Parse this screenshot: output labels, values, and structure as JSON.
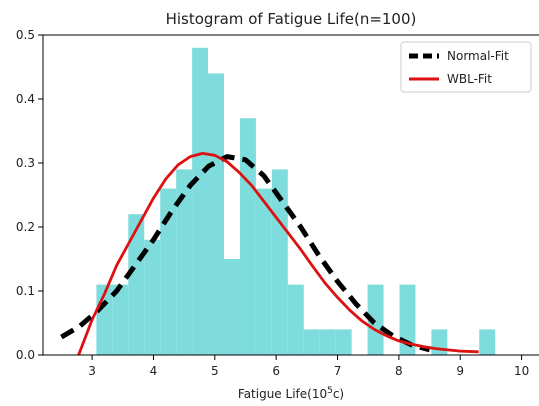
{
  "chart_data": {
    "type": "histogram",
    "title": "Histogram of Fatigue Life(n=100)",
    "xlabel_main": "Fatigue Life(10",
    "xlabel_sup": "5",
    "xlabel_end": "c)",
    "ylabel": "",
    "xlim": [
      2.2,
      10.3
    ],
    "ylim": [
      0,
      0.5
    ],
    "xticks": [
      "3",
      "4",
      "5",
      "6",
      "7",
      "8",
      "9",
      "10"
    ],
    "yticks": [
      "0.0",
      "0.1",
      "0.2",
      "0.3",
      "0.4",
      "0.5"
    ],
    "xtick_values": [
      3,
      4,
      5,
      6,
      7,
      8,
      9,
      10
    ],
    "ytick_values": [
      0,
      0.1,
      0.2,
      0.3,
      0.4,
      0.5
    ],
    "bar_color": "#7fdcdc",
    "bin_edges": [
      3.07,
      3.33,
      3.59,
      3.85,
      4.11,
      4.37,
      4.63,
      4.89,
      5.15,
      5.41,
      5.67,
      5.93,
      6.19,
      6.45,
      6.71,
      6.97,
      7.23,
      7.49,
      7.75,
      8.01,
      8.27,
      8.53,
      8.79,
      9.05,
      9.31,
      9.57,
      9.83
    ],
    "densities": [
      0.11,
      0.11,
      0.22,
      0.18,
      0.26,
      0.29,
      0.48,
      0.44,
      0.15,
      0.37,
      0.26,
      0.29,
      0.11,
      0.04,
      0.04,
      0.04,
      0,
      0.11,
      0,
      0.11,
      0,
      0.04,
      0,
      0,
      0.04,
      0
    ],
    "series": [
      {
        "name": "Normal-Fit",
        "color": "#000000",
        "style": "dashed",
        "x": [
          2.5,
          2.8,
          3.1,
          3.4,
          3.7,
          4.0,
          4.3,
          4.6,
          4.9,
          5.2,
          5.5,
          5.8,
          6.1,
          6.4,
          6.7,
          7.0,
          7.3,
          7.6,
          7.9,
          8.2,
          8.5
        ],
        "y": [
          0.028,
          0.045,
          0.07,
          0.1,
          0.14,
          0.18,
          0.225,
          0.265,
          0.295,
          0.31,
          0.305,
          0.28,
          0.24,
          0.2,
          0.155,
          0.115,
          0.08,
          0.05,
          0.03,
          0.016,
          0.008
        ]
      },
      {
        "name": "WBL-Fit",
        "color": "#dd1111",
        "style": "solid",
        "x": [
          2.78,
          3.0,
          3.2,
          3.4,
          3.6,
          3.8,
          4.0,
          4.2,
          4.4,
          4.6,
          4.8,
          5.0,
          5.2,
          5.4,
          5.6,
          5.8,
          6.0,
          6.2,
          6.4,
          6.6,
          6.8,
          7.0,
          7.2,
          7.4,
          7.6,
          7.8,
          8.0,
          8.2,
          8.4,
          8.6,
          8.8,
          9.0,
          9.3
        ],
        "y": [
          0.0,
          0.055,
          0.095,
          0.14,
          0.175,
          0.21,
          0.245,
          0.275,
          0.297,
          0.31,
          0.315,
          0.312,
          0.302,
          0.285,
          0.265,
          0.24,
          0.215,
          0.19,
          0.165,
          0.138,
          0.112,
          0.09,
          0.07,
          0.053,
          0.04,
          0.03,
          0.022,
          0.017,
          0.013,
          0.01,
          0.008,
          0.006,
          0.005
        ]
      }
    ],
    "legend_position": "top-right",
    "grid": false
  }
}
